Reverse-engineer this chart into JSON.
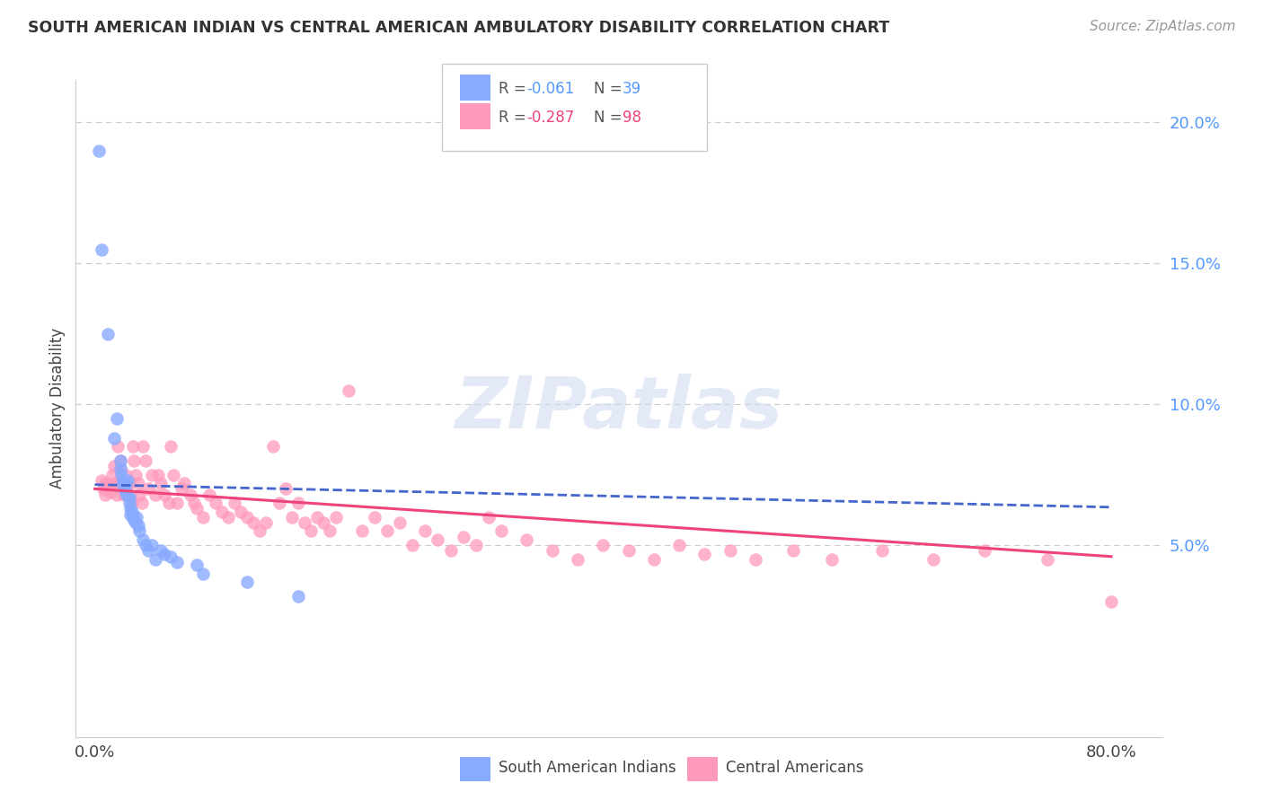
{
  "title": "SOUTH AMERICAN INDIAN VS CENTRAL AMERICAN AMBULATORY DISABILITY CORRELATION CHART",
  "source": "Source: ZipAtlas.com",
  "ylabel": "Ambulatory Disability",
  "blue_R": "-0.061",
  "blue_N": "39",
  "pink_R": "-0.287",
  "pink_N": "98",
  "blue_color": "#88AAFF",
  "pink_color": "#FF99BB",
  "blue_line_color": "#4466CC",
  "pink_line_color": "#EE4477",
  "ytick_vals": [
    0.0,
    0.05,
    0.1,
    0.15,
    0.2
  ],
  "ytick_labels": [
    "",
    "5.0%",
    "10.0%",
    "15.0%",
    "20.0%"
  ],
  "xlim": [
    -0.015,
    0.84
  ],
  "ylim": [
    -0.018,
    0.215
  ],
  "blue_x": [
    0.003,
    0.005,
    0.01,
    0.015,
    0.017,
    0.02,
    0.02,
    0.021,
    0.022,
    0.022,
    0.023,
    0.024,
    0.024,
    0.025,
    0.026,
    0.027,
    0.027,
    0.028,
    0.028,
    0.029,
    0.03,
    0.031,
    0.032,
    0.033,
    0.034,
    0.035,
    0.038,
    0.04,
    0.042,
    0.045,
    0.048,
    0.052,
    0.055,
    0.06,
    0.065,
    0.08,
    0.085,
    0.12,
    0.16
  ],
  "blue_y": [
    0.19,
    0.155,
    0.125,
    0.088,
    0.095,
    0.08,
    0.077,
    0.075,
    0.073,
    0.072,
    0.07,
    0.072,
    0.069,
    0.068,
    0.073,
    0.067,
    0.065,
    0.063,
    0.061,
    0.062,
    0.06,
    0.059,
    0.058,
    0.06,
    0.057,
    0.055,
    0.052,
    0.05,
    0.048,
    0.05,
    0.045,
    0.048,
    0.047,
    0.046,
    0.044,
    0.043,
    0.04,
    0.037,
    0.032
  ],
  "pink_x": [
    0.005,
    0.007,
    0.008,
    0.009,
    0.01,
    0.012,
    0.014,
    0.015,
    0.016,
    0.017,
    0.018,
    0.019,
    0.02,
    0.02,
    0.021,
    0.022,
    0.023,
    0.024,
    0.025,
    0.026,
    0.027,
    0.028,
    0.029,
    0.03,
    0.031,
    0.032,
    0.034,
    0.035,
    0.037,
    0.038,
    0.04,
    0.042,
    0.045,
    0.048,
    0.05,
    0.052,
    0.055,
    0.058,
    0.06,
    0.062,
    0.065,
    0.068,
    0.07,
    0.075,
    0.078,
    0.08,
    0.085,
    0.09,
    0.095,
    0.1,
    0.105,
    0.11,
    0.115,
    0.12,
    0.125,
    0.13,
    0.135,
    0.14,
    0.145,
    0.15,
    0.155,
    0.16,
    0.165,
    0.17,
    0.175,
    0.18,
    0.185,
    0.19,
    0.2,
    0.21,
    0.22,
    0.23,
    0.24,
    0.25,
    0.26,
    0.27,
    0.28,
    0.29,
    0.3,
    0.31,
    0.32,
    0.34,
    0.36,
    0.38,
    0.4,
    0.42,
    0.44,
    0.46,
    0.48,
    0.5,
    0.52,
    0.55,
    0.58,
    0.62,
    0.66,
    0.7,
    0.75,
    0.8
  ],
  "pink_y": [
    0.073,
    0.07,
    0.068,
    0.072,
    0.071,
    0.069,
    0.075,
    0.078,
    0.072,
    0.068,
    0.085,
    0.071,
    0.08,
    0.077,
    0.073,
    0.07,
    0.068,
    0.075,
    0.071,
    0.068,
    0.072,
    0.068,
    0.065,
    0.085,
    0.08,
    0.075,
    0.072,
    0.068,
    0.065,
    0.085,
    0.08,
    0.07,
    0.075,
    0.068,
    0.075,
    0.072,
    0.068,
    0.065,
    0.085,
    0.075,
    0.065,
    0.07,
    0.072,
    0.068,
    0.065,
    0.063,
    0.06,
    0.068,
    0.065,
    0.062,
    0.06,
    0.065,
    0.062,
    0.06,
    0.058,
    0.055,
    0.058,
    0.085,
    0.065,
    0.07,
    0.06,
    0.065,
    0.058,
    0.055,
    0.06,
    0.058,
    0.055,
    0.06,
    0.105,
    0.055,
    0.06,
    0.055,
    0.058,
    0.05,
    0.055,
    0.052,
    0.048,
    0.053,
    0.05,
    0.06,
    0.055,
    0.052,
    0.048,
    0.045,
    0.05,
    0.048,
    0.045,
    0.05,
    0.047,
    0.048,
    0.045,
    0.048,
    0.045,
    0.048,
    0.045,
    0.048,
    0.045,
    0.03
  ],
  "watermark": "ZIPatlas",
  "watermark_color": "#ccd8f0"
}
